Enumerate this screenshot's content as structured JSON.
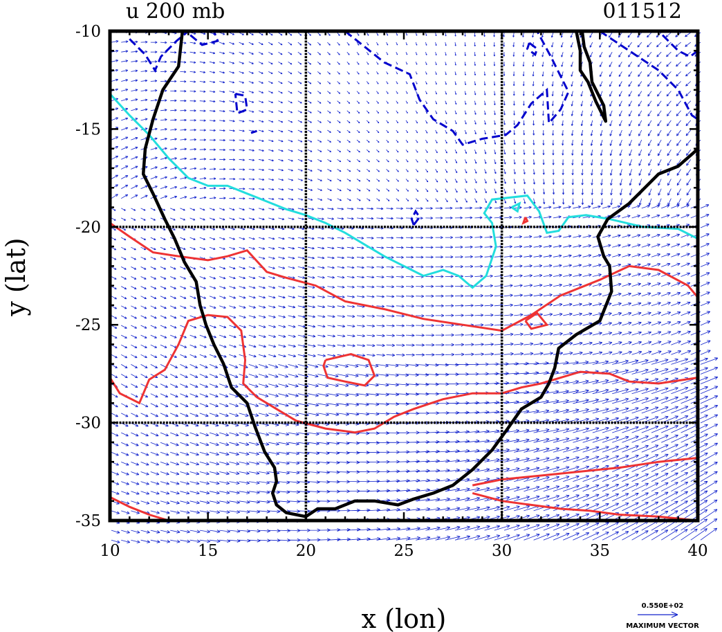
{
  "chart_data": {
    "type": "contour",
    "title_left": "u 200 mb",
    "title_right": "011512",
    "xlabel": "x (lon)",
    "ylabel": "y (lat)",
    "xlim": [
      10,
      40
    ],
    "ylim": [
      -35,
      -10
    ],
    "x_ticks": [
      "10",
      "15",
      "20",
      "25",
      "30",
      "35",
      "40"
    ],
    "y_ticks": [
      "-10",
      "-15",
      "-20",
      "-25",
      "-30",
      "-35"
    ],
    "gridlines_x": [
      20,
      30
    ],
    "gridlines_y": [
      -20,
      -30
    ],
    "vector_legend": {
      "value": "0.550E+02",
      "label": "MAXIMUM VECTOR"
    },
    "colors": {
      "coast": "#000000",
      "negative_contour": "#0000cc",
      "positive_contour": "#ee3333",
      "zero_contour": "#22dddd",
      "vectors": "#1122cc",
      "grid": "#000000"
    },
    "coastline": [
      [
        13.7,
        -10
      ],
      [
        13.5,
        -11.8
      ],
      [
        12.7,
        -13
      ],
      [
        12.2,
        -14.5
      ],
      [
        11.8,
        -16
      ],
      [
        11.7,
        -17.3
      ],
      [
        12.2,
        -18.3
      ],
      [
        12.8,
        -19.6
      ],
      [
        13.3,
        -20.6
      ],
      [
        13.8,
        -21.8
      ],
      [
        14.4,
        -22.8
      ],
      [
        14.6,
        -24
      ],
      [
        14.9,
        -25
      ],
      [
        15.3,
        -26
      ],
      [
        15.8,
        -27
      ],
      [
        16.2,
        -28.2
      ],
      [
        17,
        -29
      ],
      [
        17.4,
        -30.2
      ],
      [
        17.9,
        -31.5
      ],
      [
        18.4,
        -32.3
      ],
      [
        18.5,
        -33
      ],
      [
        18.3,
        -33.6
      ],
      [
        18.5,
        -34.2
      ],
      [
        19,
        -34.6
      ],
      [
        20,
        -34.8
      ],
      [
        20.6,
        -34.4
      ],
      [
        21.5,
        -34.4
      ],
      [
        22.5,
        -34
      ],
      [
        23.5,
        -34
      ],
      [
        24.7,
        -34.2
      ],
      [
        25.5,
        -33.9
      ],
      [
        26.5,
        -33.6
      ],
      [
        27.5,
        -33.2
      ],
      [
        28.5,
        -32.4
      ],
      [
        29.5,
        -31.4
      ],
      [
        30.3,
        -30.3
      ],
      [
        31,
        -29.3
      ],
      [
        32,
        -28.7
      ],
      [
        32.4,
        -28
      ],
      [
        32.7,
        -27.2
      ],
      [
        32.9,
        -26.2
      ],
      [
        33.8,
        -25.5
      ],
      [
        35,
        -24.8
      ],
      [
        35.6,
        -23.3
      ],
      [
        35.5,
        -22
      ],
      [
        35.2,
        -21.5
      ],
      [
        34.9,
        -20.5
      ],
      [
        35.4,
        -19.6
      ],
      [
        36.5,
        -18.8
      ],
      [
        37.3,
        -18
      ],
      [
        38,
        -17.3
      ],
      [
        39,
        -16.9
      ],
      [
        39.8,
        -16.2
      ],
      [
        40,
        -16
      ]
    ],
    "coastline_tanzania": [
      [
        33.8,
        -10
      ],
      [
        34,
        -11
      ],
      [
        34,
        -12
      ],
      [
        34.4,
        -12.6
      ],
      [
        34.8,
        -13.6
      ],
      [
        35.3,
        -14.6
      ],
      [
        35.2,
        -13.8
      ],
      [
        34.6,
        -12.6
      ],
      [
        34.5,
        -11.6
      ],
      [
        34.2,
        -10.8
      ],
      [
        34.1,
        -10
      ]
    ],
    "contours": [
      {
        "level": "zero",
        "points": [
          [
            10,
            -13.2
          ],
          [
            11,
            -14.3
          ],
          [
            12,
            -15.3
          ],
          [
            13,
            -16.5
          ],
          [
            14,
            -17.5
          ],
          [
            15,
            -17.9
          ],
          [
            16,
            -17.9
          ],
          [
            17,
            -18.3
          ],
          [
            18,
            -18.7
          ],
          [
            19,
            -19.1
          ],
          [
            20,
            -19.4
          ],
          [
            21,
            -19.8
          ],
          [
            22,
            -20.3
          ],
          [
            23,
            -20.9
          ],
          [
            24,
            -21.5
          ],
          [
            25,
            -22
          ],
          [
            26,
            -22.5
          ],
          [
            27,
            -22.2
          ],
          [
            27.8,
            -22.5
          ],
          [
            28.5,
            -23.1
          ],
          [
            29.2,
            -22.5
          ],
          [
            29.7,
            -21
          ],
          [
            29.5,
            -19.8
          ],
          [
            29.1,
            -19.3
          ],
          [
            29.5,
            -18.6
          ],
          [
            30.4,
            -18.5
          ],
          [
            31.3,
            -18.4
          ],
          [
            31.9,
            -19.2
          ],
          [
            32.3,
            -20.3
          ],
          [
            32.9,
            -20.2
          ],
          [
            33.4,
            -19.5
          ],
          [
            34.3,
            -19.4
          ],
          [
            35.5,
            -19.6
          ],
          [
            37.2,
            -20
          ],
          [
            39,
            -20.1
          ],
          [
            40,
            -20.6
          ]
        ]
      },
      {
        "level": "zero",
        "points": [
          [
            30.5,
            -19
          ],
          [
            30.9,
            -18.8
          ],
          [
            30.8,
            -19.2
          ],
          [
            30.5,
            -19
          ]
        ]
      },
      {
        "level": "positive",
        "points": [
          [
            10,
            -19.8
          ],
          [
            11,
            -20.5
          ],
          [
            12.2,
            -21.3
          ],
          [
            13.5,
            -21.5
          ],
          [
            15,
            -21.7
          ],
          [
            16,
            -21.5
          ],
          [
            17,
            -21.2
          ],
          [
            18,
            -22.3
          ],
          [
            19,
            -22.6
          ],
          [
            20.5,
            -23
          ],
          [
            22,
            -23.8
          ],
          [
            24,
            -24.2
          ],
          [
            26,
            -24.7
          ],
          [
            28,
            -25
          ],
          [
            30,
            -25.3
          ],
          [
            31.5,
            -24.5
          ],
          [
            33,
            -23.5
          ],
          [
            35,
            -22.7
          ],
          [
            36.5,
            -22
          ],
          [
            38,
            -22.2
          ],
          [
            39.5,
            -23
          ],
          [
            40,
            -23.6
          ]
        ]
      },
      {
        "level": "positive",
        "points": [
          [
            10,
            -27.7
          ],
          [
            10.5,
            -28.5
          ],
          [
            11.5,
            -29
          ],
          [
            12,
            -27.8
          ],
          [
            12.8,
            -27.3
          ],
          [
            13.5,
            -26
          ],
          [
            14,
            -24.8
          ],
          [
            15,
            -24.5
          ],
          [
            16,
            -24.6
          ],
          [
            16.7,
            -25.3
          ],
          [
            16.9,
            -26.8
          ],
          [
            16.8,
            -28
          ],
          [
            17.5,
            -28.7
          ],
          [
            18.5,
            -29.3
          ],
          [
            19.5,
            -29.9
          ],
          [
            21,
            -30.3
          ],
          [
            22.5,
            -30.5
          ],
          [
            23.5,
            -30.3
          ],
          [
            24.5,
            -29.7
          ],
          [
            25.5,
            -29.3
          ],
          [
            27,
            -28.8
          ],
          [
            28.5,
            -28.5
          ],
          [
            30,
            -28.5
          ],
          [
            31,
            -28.2
          ],
          [
            32,
            -28
          ],
          [
            33,
            -27.7
          ],
          [
            34,
            -27.4
          ],
          [
            35.5,
            -27.5
          ],
          [
            36.5,
            -27.9
          ],
          [
            38,
            -28
          ],
          [
            40,
            -27.7
          ]
        ]
      },
      {
        "level": "positive",
        "points": [
          [
            21,
            -26.8
          ],
          [
            22.3,
            -26.5
          ],
          [
            23.2,
            -26.8
          ],
          [
            23.5,
            -27.6
          ],
          [
            23,
            -28.1
          ],
          [
            22,
            -27.9
          ],
          [
            21.1,
            -27.7
          ],
          [
            20.9,
            -27.1
          ],
          [
            21,
            -26.8
          ]
        ]
      },
      {
        "level": "positive",
        "points": [
          [
            28.5,
            -33.2
          ],
          [
            30,
            -32.9
          ],
          [
            32,
            -32.7
          ],
          [
            34,
            -32.5
          ],
          [
            36,
            -32.3
          ],
          [
            38,
            -32
          ],
          [
            40,
            -31.8
          ]
        ]
      },
      {
        "level": "positive",
        "points": [
          [
            28.5,
            -33.6
          ],
          [
            30,
            -34
          ],
          [
            31.5,
            -34.2
          ],
          [
            33,
            -34.4
          ],
          [
            34.5,
            -34.5
          ],
          [
            36,
            -34.7
          ],
          [
            38,
            -34.8
          ],
          [
            40,
            -35
          ]
        ]
      },
      {
        "level": "positive",
        "points": [
          [
            10,
            -33.8
          ],
          [
            11,
            -34.3
          ],
          [
            12,
            -34.7
          ],
          [
            13,
            -35
          ]
        ]
      },
      {
        "level": "positive",
        "points": [
          [
            15.5,
            -35
          ],
          [
            17,
            -35
          ]
        ]
      },
      {
        "level": "positive",
        "points": [
          [
            31.2,
            -24.8
          ],
          [
            31.8,
            -24.4
          ],
          [
            32.3,
            -25
          ],
          [
            31.5,
            -25.2
          ],
          [
            31.2,
            -24.8
          ]
        ]
      },
      {
        "level": "positive",
        "points": [
          [
            31.2,
            -19.5
          ],
          [
            31.3,
            -19.7
          ],
          [
            31.1,
            -19.8
          ],
          [
            31.2,
            -19.5
          ]
        ]
      },
      {
        "level": "negative",
        "points": [
          [
            11,
            -10.4
          ],
          [
            11.8,
            -11.2
          ],
          [
            12.3,
            -12
          ],
          [
            12.6,
            -11.3
          ],
          [
            13.4,
            -10.5
          ],
          [
            14,
            -10
          ]
        ]
      },
      {
        "level": "negative",
        "points": [
          [
            14.1,
            -10.2
          ],
          [
            14.7,
            -10.7
          ],
          [
            15.5,
            -10.5
          ],
          [
            15.3,
            -10
          ]
        ]
      },
      {
        "level": "negative",
        "points": [
          [
            16.4,
            -13.2
          ],
          [
            16.9,
            -13.3
          ],
          [
            17,
            -14
          ],
          [
            16.5,
            -14.2
          ],
          [
            16.4,
            -13.2
          ]
        ]
      },
      {
        "level": "negative",
        "points": [
          [
            17.2,
            -15.2
          ],
          [
            17.5,
            -15.1
          ]
        ]
      },
      {
        "level": "negative",
        "points": [
          [
            25.5,
            -19.9
          ],
          [
            25.8,
            -19.5
          ],
          [
            25.6,
            -19.2
          ],
          [
            25.4,
            -19.6
          ],
          [
            25.5,
            -19.9
          ]
        ]
      },
      {
        "level": "negative",
        "points": [
          [
            22,
            -10
          ],
          [
            23,
            -10.8
          ],
          [
            24,
            -11.6
          ],
          [
            25.3,
            -12.2
          ],
          [
            25.8,
            -13.5
          ],
          [
            26.5,
            -14.5
          ],
          [
            27.5,
            -15.1
          ],
          [
            28,
            -15.8
          ],
          [
            29,
            -15.5
          ],
          [
            30.2,
            -15.3
          ],
          [
            30.8,
            -14.8
          ],
          [
            31.5,
            -13.7
          ],
          [
            32.3,
            -13
          ],
          [
            32.4,
            -14.7
          ],
          [
            33,
            -14
          ],
          [
            33.4,
            -13.1
          ],
          [
            32.5,
            -11.3
          ],
          [
            31.8,
            -10
          ]
        ]
      },
      {
        "level": "negative",
        "points": [
          [
            31.4,
            -10.6
          ],
          [
            31.8,
            -10.9
          ],
          [
            31.7,
            -11.2
          ],
          [
            31.3,
            -10.9
          ],
          [
            31.4,
            -10.6
          ]
        ]
      },
      {
        "level": "negative",
        "points": [
          [
            35,
            -10
          ],
          [
            36.5,
            -11
          ],
          [
            38,
            -12
          ],
          [
            39,
            -13
          ],
          [
            39.7,
            -14.3
          ],
          [
            40,
            -14.5
          ]
        ]
      },
      {
        "level": "negative",
        "points": [
          [
            38.2,
            -10.2
          ],
          [
            39,
            -11
          ],
          [
            39.6,
            -11.3
          ],
          [
            40,
            -11
          ]
        ]
      }
    ]
  }
}
